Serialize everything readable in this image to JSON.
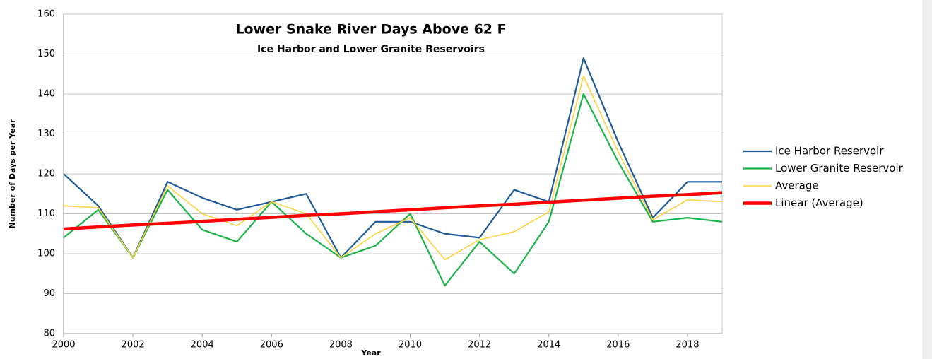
{
  "chart_data": {
    "type": "line",
    "title": "Lower Snake River Days Above 62 F",
    "subtitle": "Ice Harbor and Lower Granite Reservoirs",
    "x_label": "Year",
    "y_label": "Number of Days per Year",
    "x": [
      2000,
      2001,
      2002,
      2003,
      2004,
      2005,
      2006,
      2007,
      2008,
      2009,
      2010,
      2011,
      2012,
      2013,
      2014,
      2015,
      2016,
      2017,
      2018,
      2019
    ],
    "series": [
      {
        "name": "Ice Harbor Reservoir",
        "color": "#1f5b99",
        "width": 2.2,
        "values": [
          120,
          112,
          99,
          118,
          114,
          111,
          113,
          115,
          99,
          108,
          108,
          105,
          104,
          116,
          113,
          149,
          128,
          109,
          118,
          118
        ]
      },
      {
        "name": "Lower Granite Reservoir",
        "color": "#1db34a",
        "width": 2.2,
        "values": [
          104,
          111,
          99,
          116,
          106,
          103,
          113,
          105,
          99,
          102,
          110,
          92,
          103,
          95,
          108,
          140,
          123,
          108,
          109,
          108
        ]
      },
      {
        "name": "Average",
        "color": "#ffd23f",
        "width": 1.6,
        "values": [
          112,
          111.5,
          99,
          117,
          110,
          107,
          113,
          110,
          99,
          105,
          109,
          98.5,
          103.5,
          105.5,
          110.5,
          144.5,
          125.5,
          108.5,
          113.5,
          113
        ]
      },
      {
        "name": "Linear (Average)",
        "color": "#ff0000",
        "width": 4.5,
        "values": [
          106.2,
          106.7,
          107.2,
          107.6,
          108.1,
          108.6,
          109.1,
          109.6,
          110.0,
          110.5,
          111.0,
          111.5,
          112.0,
          112.4,
          112.9,
          113.4,
          113.9,
          114.4,
          114.8,
          115.3
        ]
      }
    ],
    "xlim": [
      2000,
      2019
    ],
    "xticks": [
      2000,
      2002,
      2004,
      2006,
      2008,
      2010,
      2012,
      2014,
      2016,
      2018
    ],
    "ylim": [
      80,
      160
    ],
    "yticks": [
      80,
      90,
      100,
      110,
      120,
      130,
      140,
      150,
      160
    ],
    "grid": true,
    "legend": "right"
  }
}
